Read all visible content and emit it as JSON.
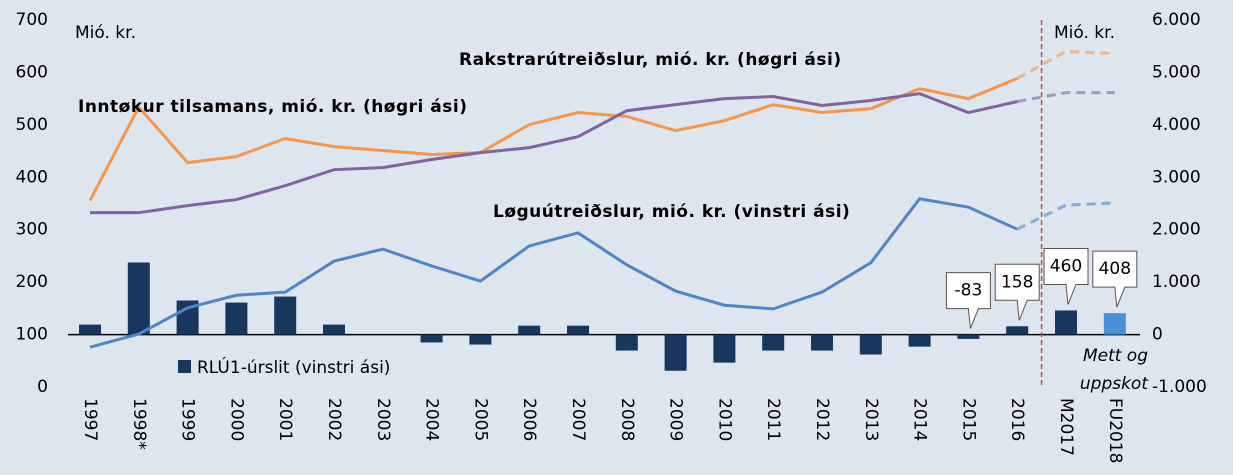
{
  "chart_data": {
    "type": "combo",
    "categories": [
      "1997",
      "1998*",
      "1999",
      "2000",
      "2001",
      "2002",
      "2003",
      "2004",
      "2005",
      "2006",
      "2007",
      "2008",
      "2009",
      "2010",
      "2011",
      "2012",
      "2013",
      "2014",
      "2015",
      "2016",
      "M2017",
      "FU2018"
    ],
    "ylim": [
      0,
      700
    ],
    "yticks": [
      0,
      100,
      200,
      300,
      400,
      500,
      600,
      700
    ],
    "y2lim": [
      -1000,
      6000
    ],
    "y2ticks": [
      {
        "value": -1000,
        "label": "-1.000"
      },
      0,
      {
        "value": 1000,
        "label": "1.000"
      },
      {
        "value": 2000,
        "label": "2.000"
      },
      {
        "value": 3000,
        "label": "3.000"
      },
      {
        "value": 4000,
        "label": "4.000"
      },
      {
        "value": 5000,
        "label": "5.000"
      },
      {
        "value": 6000,
        "label": "6.000"
      }
    ],
    "series": [
      {
        "name": "RLÚ1-úrslit (vinstri ási)",
        "type": "bar",
        "axis": "y2",
        "color": "#17375e",
        "colors": [
          "#17375e",
          "#17375e",
          "#17375e",
          "#17375e",
          "#17375e",
          "#17375e",
          "#17375e",
          "#17375e",
          "#17375e",
          "#17375e",
          "#17375e",
          "#17375e",
          "#17375e",
          "#17375e",
          "#17375e",
          "#17375e",
          "#17375e",
          "#17375e",
          "#17375e",
          "#17375e",
          "#17375e",
          "#4a90d9"
        ],
        "values": [
          190,
          1375,
          650,
          610,
          725,
          190,
          0,
          -150,
          -190,
          170,
          170,
          -305,
          -690,
          -535,
          -305,
          -305,
          -380,
          -230,
          -83,
          158,
          460,
          408
        ],
        "value_labels": [
          null,
          null,
          null,
          null,
          null,
          null,
          null,
          null,
          null,
          null,
          null,
          null,
          null,
          null,
          null,
          null,
          null,
          null,
          "-83",
          "158",
          "460",
          "408"
        ]
      },
      {
        "name": "Løguútreiðslur, mió. kr. (vinstri ási)",
        "type": "line",
        "axis": "y",
        "color": "#4f86c6",
        "dash_from": 19,
        "values": [
          76,
          101,
          151,
          175,
          181,
          240,
          263,
          231,
          202,
          269,
          294,
          233,
          183,
          156,
          149,
          181,
          237,
          359,
          343,
          301,
          347,
          351
        ]
      },
      {
        "name": "Inntøkur tilsamans, mió. kr. (høgri ási)",
        "type": "line",
        "axis": "y2",
        "color": "#f79646",
        "dash_from": 19,
        "values": [
          2557,
          4340,
          3280,
          3395,
          3740,
          3585,
          3510,
          3435,
          3470,
          4005,
          4235,
          4160,
          3890,
          4080,
          4385,
          4235,
          4310,
          4690,
          4500,
          4885,
          5400,
          5360
        ]
      },
      {
        "name": "Rakstrarútreiðslur, mió. kr. (høgri ási)",
        "type": "line",
        "axis": "y2",
        "color": "#8064a2",
        "dash_from": 19,
        "values": [
          2325,
          2325,
          2460,
          2575,
          2840,
          3145,
          3185,
          3340,
          3470,
          3565,
          3775,
          4270,
          4385,
          4500,
          4540,
          4370,
          4465,
          4595,
          4235,
          4445,
          4615,
          4615
        ]
      }
    ],
    "annotations": [
      {
        "text": "Mió. kr."
      },
      {
        "text": "Mió. kr."
      },
      {
        "lines": [
          "Mett og",
          "uppskot"
        ],
        "color": "#c0504d"
      }
    ]
  }
}
